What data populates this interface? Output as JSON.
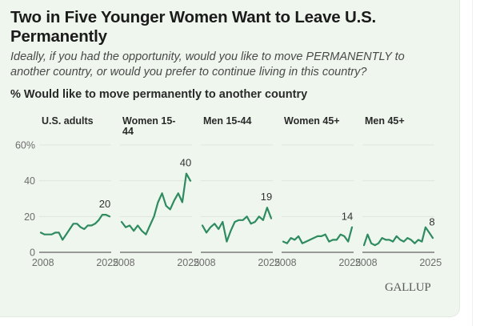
{
  "header": {
    "title": "Two in Five Younger Women Want to Leave U.S. Permanently",
    "subtitle": "Ideally, if you had the opportunity, would you like to move PERMANENTLY to another country, or would you prefer to continue living in this country?",
    "measure": "% Would like to move permanently to another country"
  },
  "source": "GALLUP",
  "colors": {
    "line": "#2e8b60",
    "grid": "#dde5dc",
    "baseline": "#7a7a7a",
    "card_bg": "#eff6ee"
  },
  "chart_data": {
    "type": "line",
    "title": "Two in Five Younger Women Want to Leave U.S. Permanently",
    "subtitle": "% Would like to move permanently to another country",
    "xlabel": "",
    "ylabel": "%",
    "ylim": [
      0,
      60
    ],
    "yticks": [
      0,
      20,
      40,
      60
    ],
    "ytick_labels": [
      "0",
      "20",
      "40",
      "60%"
    ],
    "xticks": [
      2008,
      2025
    ],
    "xtick_labels": [
      "2008",
      "2025"
    ],
    "xlim": [
      2007,
      2026
    ],
    "grid": true,
    "legend": "none",
    "x": [
      2007,
      2008,
      2009,
      2010,
      2011,
      2012,
      2013,
      2014,
      2015,
      2016,
      2017,
      2018,
      2019,
      2020,
      2021,
      2022,
      2023,
      2024,
      2025,
      2026
    ],
    "series": [
      {
        "name": "U.S. adults",
        "end_label": "20",
        "values": [
          11,
          10,
          10,
          10,
          11,
          11,
          7,
          10,
          13,
          16,
          16,
          14,
          13,
          15,
          15,
          16,
          18,
          21,
          21,
          20
        ]
      },
      {
        "name": "Women 15-44",
        "end_label": "40",
        "values": [
          17,
          14,
          15,
          12,
          15,
          12,
          10,
          15,
          20,
          28,
          33,
          26,
          24,
          29,
          33,
          28,
          44,
          40,
          null,
          null
        ]
      },
      {
        "name": "Men 15-44",
        "end_label": "19",
        "values": [
          15,
          11,
          14,
          16,
          13,
          17,
          6,
          12,
          17,
          18,
          18,
          20,
          16,
          17,
          20,
          18,
          25,
          19,
          null,
          null
        ]
      },
      {
        "name": "Women 45+",
        "end_label": "14",
        "values": [
          6,
          5,
          8,
          7,
          9,
          5,
          6,
          7,
          8,
          9,
          9,
          10,
          6,
          7,
          7,
          10,
          9,
          6,
          14,
          null
        ]
      },
      {
        "name": "Men 45+",
        "end_label": "8",
        "values": [
          4,
          10,
          5,
          4,
          5,
          8,
          7,
          7,
          6,
          9,
          7,
          6,
          8,
          7,
          5,
          7,
          6,
          14,
          11,
          8
        ]
      }
    ]
  }
}
